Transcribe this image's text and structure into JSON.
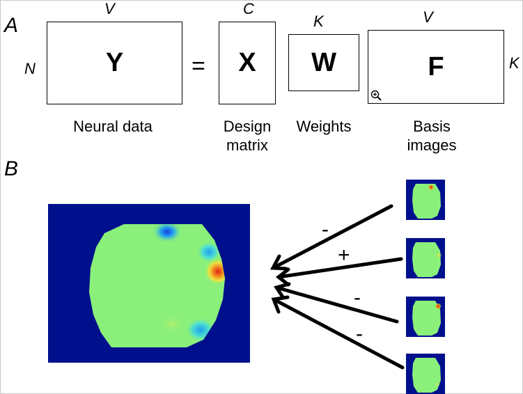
{
  "panel_a": {
    "letter": "A",
    "y_matrix": {
      "symbol": "Y",
      "top_dim": "V",
      "left_dim": "N",
      "caption": "Neural data"
    },
    "equals": "=",
    "x_matrix": {
      "symbol": "X",
      "top_dim": "C",
      "caption_line1": "Design",
      "caption_line2": "matrix"
    },
    "w_matrix": {
      "symbol": "W",
      "top_dim": "K",
      "caption": "Weights"
    },
    "f_matrix": {
      "symbol": "F",
      "top_dim": "V",
      "right_dim": "K",
      "caption_line1": "Basis",
      "caption_line2": "images"
    }
  },
  "panel_b": {
    "letter": "B",
    "signs": [
      "-",
      "+",
      "-",
      "-"
    ],
    "colors": {
      "background": "#00108c",
      "brain": "#8af07a",
      "red": "#e0221a",
      "blue": "#1a6cf0",
      "cyan": "#29c8f0",
      "yellow": "#f0e040"
    }
  },
  "icons": {
    "zoom": "zoom-in-icon"
  }
}
